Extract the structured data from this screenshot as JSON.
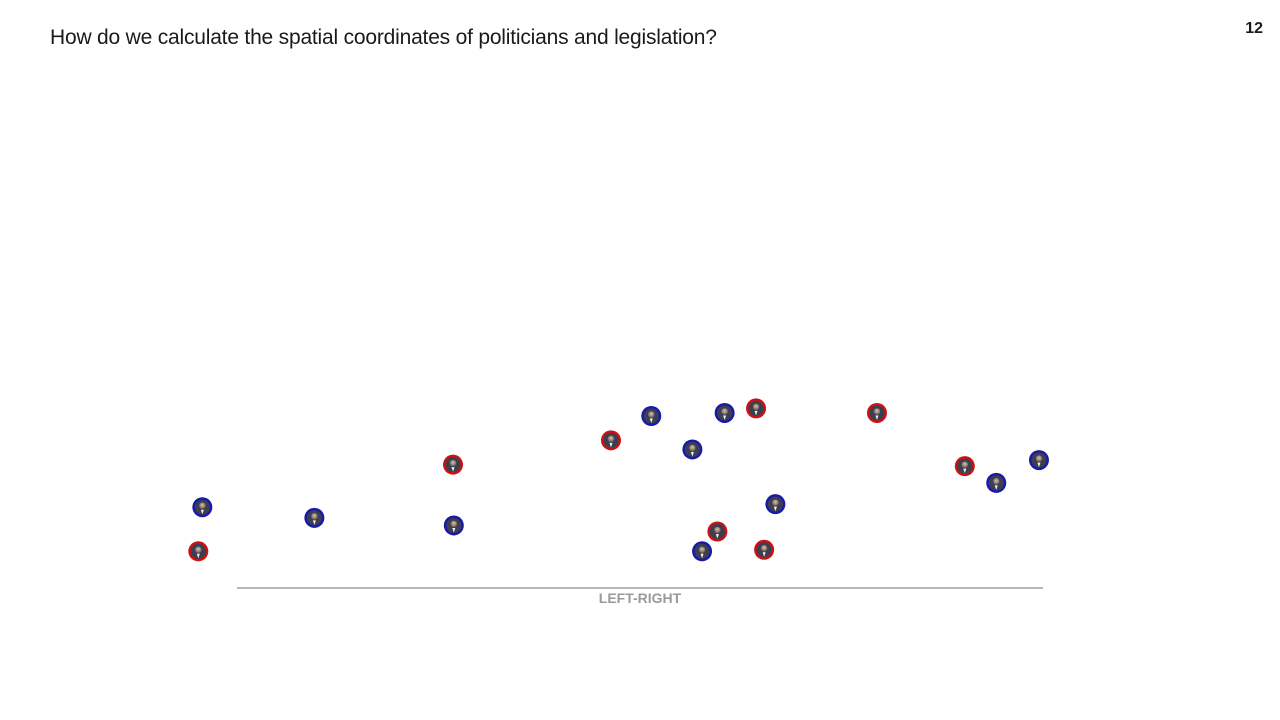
{
  "slide": {
    "title": "How do we calculate the spatial coordinates of politicians and legislation?",
    "page_number": "12"
  },
  "colors": {
    "democrat": "#1a1aa8",
    "republican": "#cc1111",
    "axis": "#a0a0a0",
    "axis_label": "#9a9a9a"
  },
  "chart_data": {
    "type": "scatter",
    "xlabel": "LEFT-RIGHT",
    "ylabel": "",
    "title": "",
    "grid": false,
    "xlim": [
      0,
      100
    ],
    "ylim": [
      0,
      100
    ],
    "points": [
      {
        "x": -4.3,
        "y": 40,
        "party": "democrat"
      },
      {
        "x": -4.8,
        "y": 11,
        "party": "republican"
      },
      {
        "x": 9.6,
        "y": 33,
        "party": "democrat"
      },
      {
        "x": 26.8,
        "y": 68,
        "party": "republican"
      },
      {
        "x": 26.9,
        "y": 28,
        "party": "democrat"
      },
      {
        "x": 46.4,
        "y": 84,
        "party": "republican"
      },
      {
        "x": 51.4,
        "y": 100,
        "party": "democrat"
      },
      {
        "x": 56.5,
        "y": 78,
        "party": "democrat"
      },
      {
        "x": 60.5,
        "y": 102,
        "party": "democrat"
      },
      {
        "x": 64.4,
        "y": 105,
        "party": "republican"
      },
      {
        "x": 59.6,
        "y": 24,
        "party": "republican"
      },
      {
        "x": 57.7,
        "y": 11,
        "party": "democrat"
      },
      {
        "x": 65.4,
        "y": 12,
        "party": "republican"
      },
      {
        "x": 66.8,
        "y": 42,
        "party": "democrat"
      },
      {
        "x": 79.4,
        "y": 102,
        "party": "republican"
      },
      {
        "x": 90.3,
        "y": 67,
        "party": "republican"
      },
      {
        "x": 94.2,
        "y": 56,
        "party": "democrat"
      },
      {
        "x": 99.5,
        "y": 71,
        "party": "democrat"
      }
    ]
  }
}
